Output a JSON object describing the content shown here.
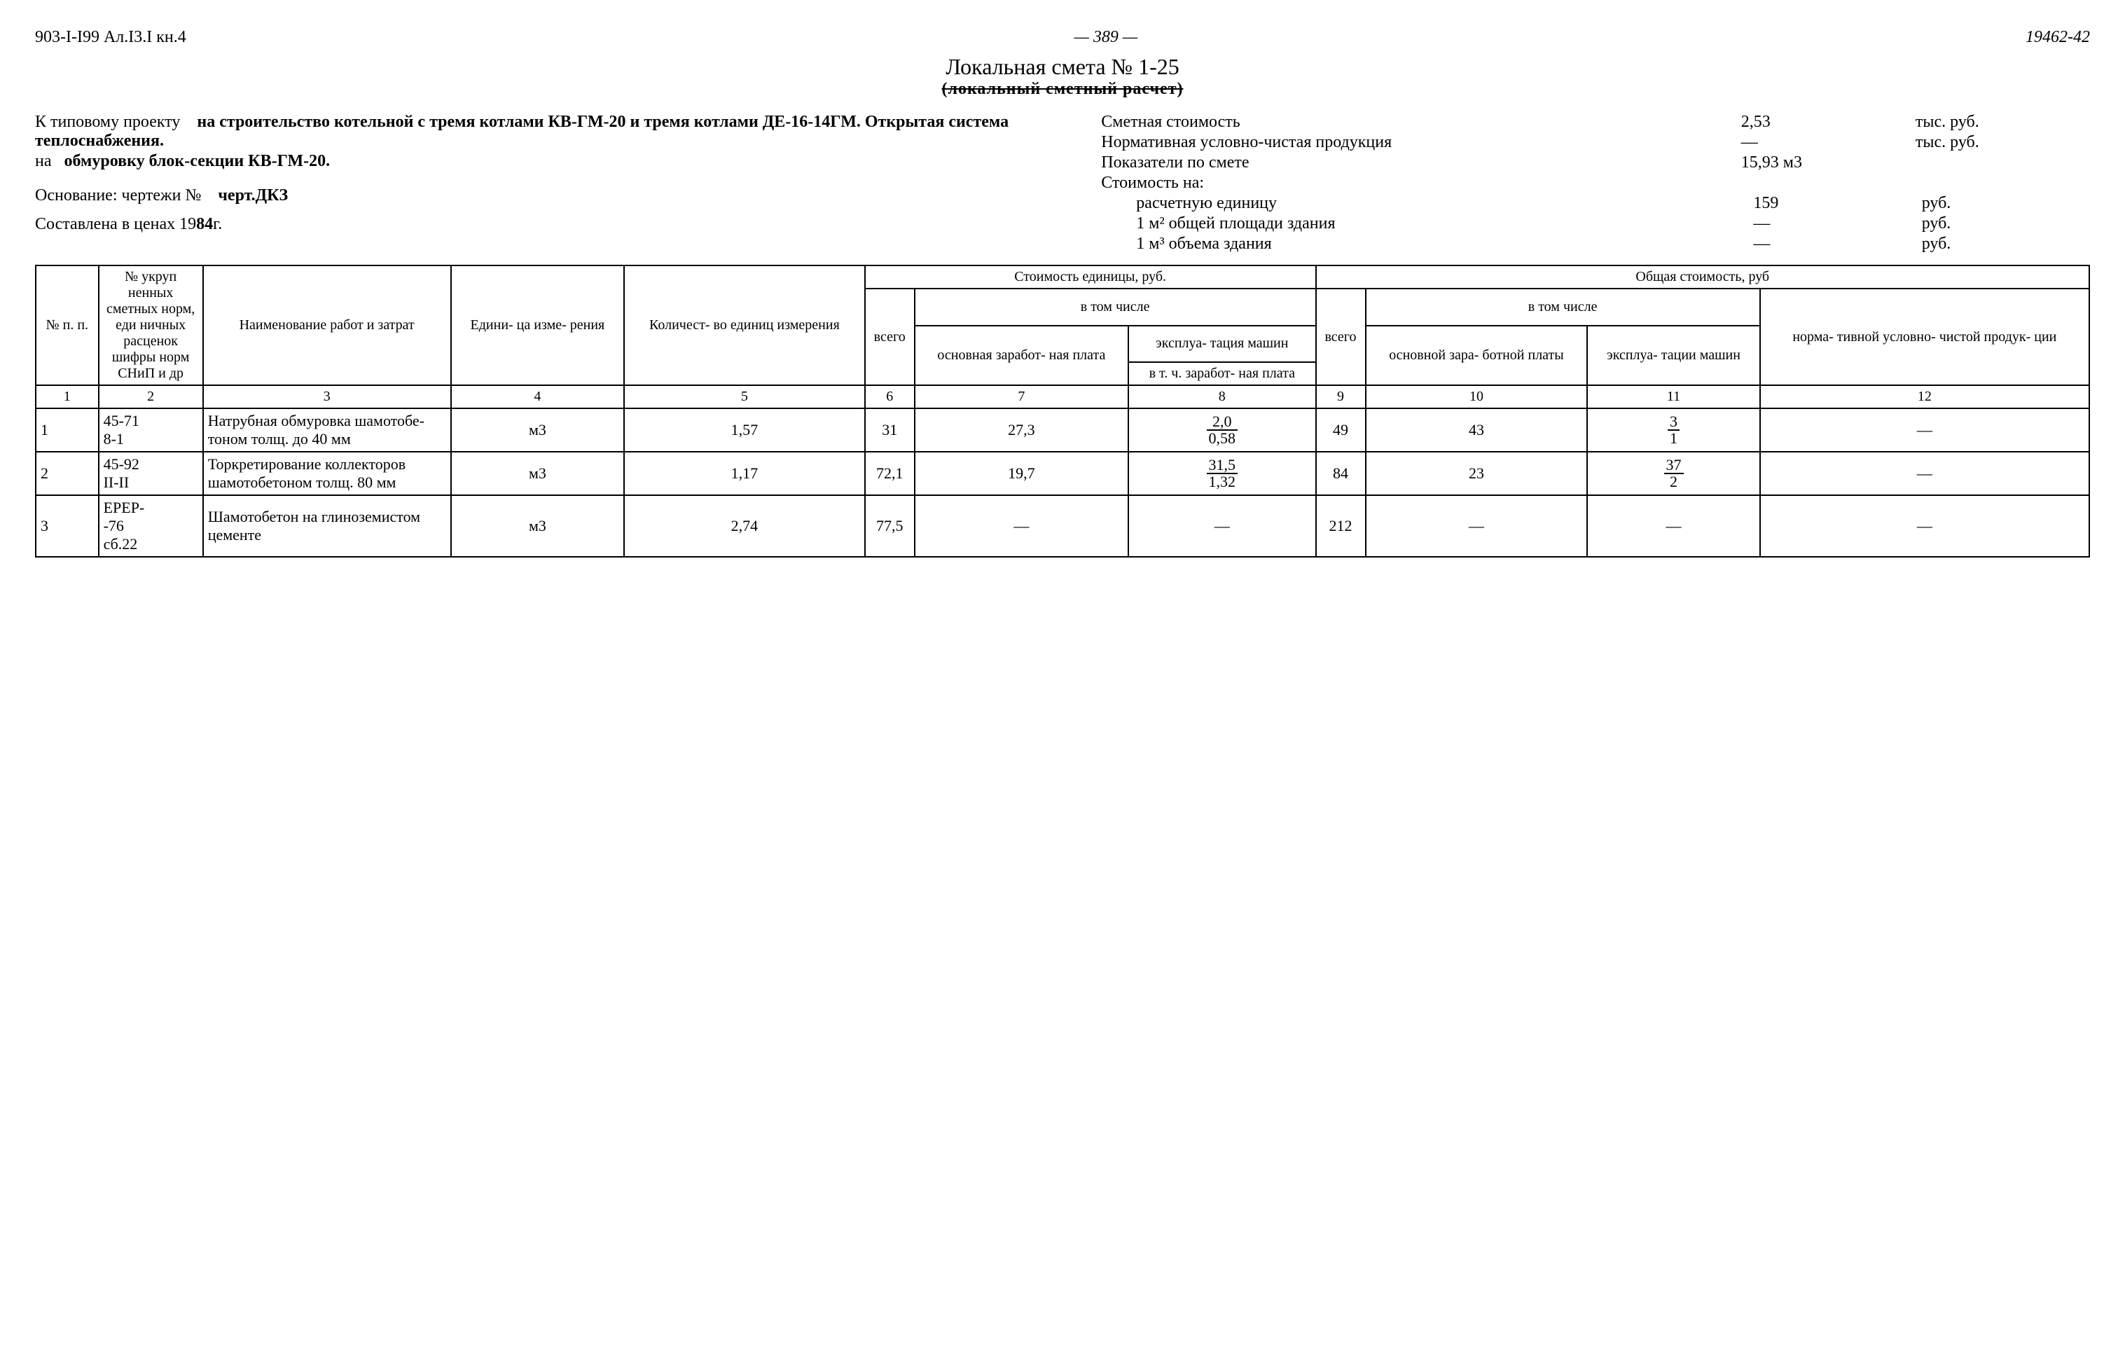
{
  "header": {
    "doc_code": "903-I-I99 Ал.I3.I кн.4",
    "page_number": "— 389 —",
    "right_code": "19462-42"
  },
  "title": {
    "main": "Локальная смета № 1-25",
    "sub": "(локальный сметный расчет)"
  },
  "meta_left": {
    "project_label": "К типовому проекту",
    "project_text": "на строительство котельной с тремя котлами КВ-ГМ-20 и тремя котлами ДЕ-16-14ГМ. Открытая система теплоснабжения.",
    "na_label": "на",
    "na_text": "обмуровку блок-секции КВ-ГМ-20.",
    "basis_label": "Основание: чертежи №",
    "basis_text": "черт.ДКЗ",
    "prices_label": "Составлена в ценах 19",
    "prices_year": "84",
    "prices_suffix": "г."
  },
  "meta_right": {
    "rows": [
      {
        "label": "Сметная стоимость",
        "val": "2,53",
        "unit": "тыс. руб."
      },
      {
        "label": "Нормативная условно-чистая продукция",
        "val": "—",
        "unit": "тыс. руб."
      },
      {
        "label": "Показатели по смете",
        "val": "15,93 м3",
        "unit": ""
      },
      {
        "label": "Стоимость на:",
        "val": "",
        "unit": ""
      },
      {
        "label": "расчетную единицу",
        "val": "159",
        "unit": "руб.",
        "indent": true
      },
      {
        "label": "1 м² общей площади здания",
        "val": "—",
        "unit": "руб.",
        "indent": true
      },
      {
        "label": "1 м³ объема здания",
        "val": "—",
        "unit": "руб.",
        "indent": true
      }
    ]
  },
  "table": {
    "head": {
      "c1": "№ п. п.",
      "c2": "№ укруп ненных сметных норм, еди ничных расценок шифры норм СНиП и др",
      "c3": "Наименование работ и затрат",
      "c4": "Едини- ца изме- рения",
      "c5": "Количест- во единиц измерения",
      "g6": "Стоимость единицы, руб.",
      "g9": "Общая стоимость, руб",
      "c6": "всего",
      "g7": "в том числе",
      "c7": "основная заработ- ная плата",
      "c8a": "эксплуа- тация машин",
      "c8b": "в т. ч. заработ- ная плата",
      "c9": "всего",
      "g10": "в том числе",
      "c10": "основной зара- ботной платы",
      "c11": "эксплуа- тации машин",
      "c12": "норма- тивной условно- чистой продук- ции"
    },
    "colnums": [
      "1",
      "2",
      "3",
      "4",
      "5",
      "6",
      "7",
      "8",
      "9",
      "10",
      "11",
      "12"
    ],
    "rows": [
      {
        "n": "1",
        "code": "45-71\n8-1",
        "name": "Натрубная обмуровка шамотобе-\nтоном толщ. до 40 мм",
        "unit": "м3",
        "qty": "1,57",
        "c6": "31",
        "c7": "27,3",
        "c8_top": "2,0",
        "c8_bot": "0,58",
        "c9": "49",
        "c10": "43",
        "c11_top": "3",
        "c11_bot": "1",
        "c12": "—"
      },
      {
        "n": "2",
        "code": "45-92\nII-II",
        "name": "Торкретирование коллекторов\nшамотобетоном толщ. 80 мм",
        "unit": "м3",
        "qty": "1,17",
        "c6": "72,1",
        "c7": "19,7",
        "c8_top": "31,5",
        "c8_bot": "1,32",
        "c9": "84",
        "c10": "23",
        "c11_top": "37",
        "c11_bot": "2",
        "c12": "—"
      },
      {
        "n": "3",
        "code": "ЕРЕР-\n-76\nсб.22",
        "name": "Шамотобетон на глиноземистом\nцементе",
        "unit": "м3",
        "qty": "2,74",
        "c6": "77,5",
        "c7": "—",
        "c8_top": "—",
        "c8_bot": "",
        "c9": "212",
        "c10": "—",
        "c11_top": "—",
        "c11_bot": "",
        "c12": "—"
      }
    ]
  }
}
